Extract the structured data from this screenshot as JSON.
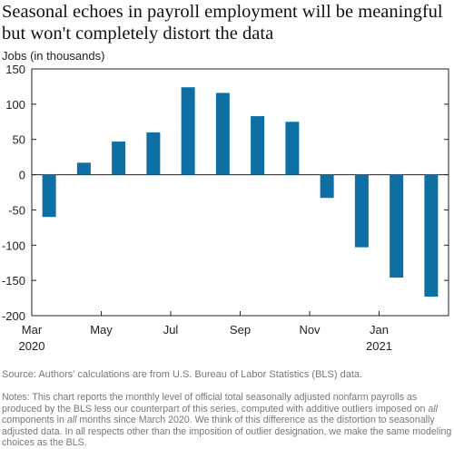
{
  "title": "Seasonal echoes in payroll employment will be meaningful but won't completely distort the data",
  "chart_data": {
    "type": "bar",
    "ylabel": "Jobs (in thousands)",
    "xlabel": "",
    "ylim": [
      -200,
      150
    ],
    "yticks": [
      150,
      100,
      50,
      0,
      -50,
      -100,
      -150,
      -200
    ],
    "x_tick_labels": [
      {
        "label": "Mar",
        "sub": "2020",
        "month_index": 0
      },
      {
        "label": "May",
        "sub": "",
        "month_index": 2
      },
      {
        "label": "Jul",
        "sub": "",
        "month_index": 4
      },
      {
        "label": "Sep",
        "sub": "",
        "month_index": 6
      },
      {
        "label": "Nov",
        "sub": "",
        "month_index": 8
      },
      {
        "label": "Jan",
        "sub": "2021",
        "month_index": 10
      }
    ],
    "categories": [
      "Mar 2020",
      "Apr 2020",
      "May 2020",
      "Jun 2020",
      "Jul 2020",
      "Aug 2020",
      "Sep 2020",
      "Oct 2020",
      "Nov 2020",
      "Dec 2020",
      "Jan 2021",
      "Feb 2021"
    ],
    "values": [
      -60,
      17,
      47,
      60,
      124,
      116,
      83,
      75,
      -33,
      -103,
      -146,
      -173
    ],
    "grid": false,
    "bar_color": "#0e6fa5"
  },
  "source": "Source: Authors' calculations are from U.S. Bureau of Labor Statistics (BLS) data.",
  "notes": {
    "p1": "Notes: This chart reports the monthly level of official total seasonally adjusted nonfarm payrolls as produced by the BLS less our counterpart of this series, computed with additive outliers imposed on ",
    "em1": "all",
    "p2": " components in ",
    "em2": "all",
    "p3": " months since March 2020. We think of this difference as the distortion to seasonally adjusted data. In all respects other than the imposition of outlier designation, we make the same modeling choices as the BLS."
  }
}
